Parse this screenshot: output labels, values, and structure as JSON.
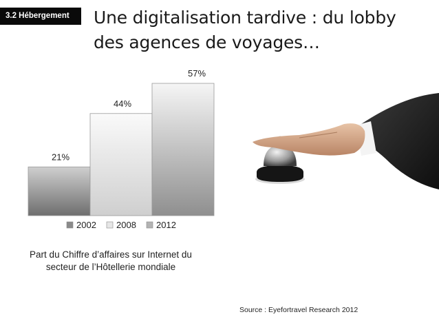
{
  "header": {
    "section_tag": "3.2 Hébergement",
    "title_line1": "Une digitalisation tardive : du lobby",
    "title_line2": "des agences de voyages…"
  },
  "chart_data": {
    "type": "bar",
    "categories": [
      "2002",
      "2008",
      "2012"
    ],
    "values": [
      21,
      44,
      57
    ],
    "data_labels": [
      "21%",
      "44%",
      "57%"
    ],
    "ylim": [
      0,
      60
    ],
    "legend": [
      "2002",
      "2008",
      "2012"
    ],
    "legend_position": "bottom",
    "grid": false,
    "bar_colors": [
      "#8a8a8a",
      "#e6e6e6",
      "#b3b3b3"
    ]
  },
  "caption": {
    "line1": "Part du Chiffre d’affaires sur Internet du",
    "line2": "secteur de l’Hôtellerie mondiale"
  },
  "source": "Source : Eyefortravel Research 2012",
  "photo": {
    "icon": "hand-ringing-bell-icon"
  }
}
